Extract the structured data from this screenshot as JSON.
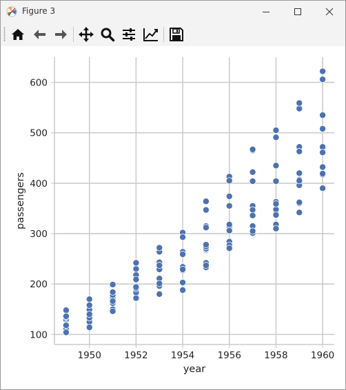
{
  "window": {
    "title": "Figure 3",
    "app_icon": "matplotlib-icon",
    "controls": [
      "minimize-icon",
      "maximize-icon",
      "close-icon"
    ]
  },
  "toolbar": {
    "buttons": [
      {
        "name": "home",
        "icon": "home-icon"
      },
      {
        "name": "back",
        "icon": "back-arrow-icon"
      },
      {
        "name": "forward",
        "icon": "forward-arrow-icon"
      },
      {
        "name": "pan",
        "icon": "move-icon"
      },
      {
        "name": "zoom",
        "icon": "zoom-icon"
      },
      {
        "name": "configure-subplots",
        "icon": "sliders-icon"
      },
      {
        "name": "edit-axis",
        "icon": "line-chart-icon"
      },
      {
        "name": "save",
        "icon": "save-icon"
      }
    ]
  },
  "chart_data": {
    "type": "scatter",
    "xlabel": "year",
    "ylabel": "passengers",
    "xlim": [
      1948.5,
      1960.5
    ],
    "ylim": [
      80,
      650
    ],
    "xticks": [
      1950,
      1952,
      1954,
      1956,
      1958,
      1960
    ],
    "yticks": [
      100,
      200,
      300,
      400,
      500,
      600
    ],
    "grid": true,
    "marker_color": "#4c72b0",
    "marker_edge": "#ffffff",
    "points": [
      [
        1949,
        112
      ],
      [
        1949,
        118
      ],
      [
        1949,
        132
      ],
      [
        1949,
        129
      ],
      [
        1949,
        121
      ],
      [
        1949,
        135
      ],
      [
        1949,
        148
      ],
      [
        1949,
        148
      ],
      [
        1949,
        136
      ],
      [
        1949,
        119
      ],
      [
        1949,
        104
      ],
      [
        1949,
        118
      ],
      [
        1950,
        115
      ],
      [
        1950,
        126
      ],
      [
        1950,
        141
      ],
      [
        1950,
        135
      ],
      [
        1950,
        125
      ],
      [
        1950,
        149
      ],
      [
        1950,
        170
      ],
      [
        1950,
        170
      ],
      [
        1950,
        158
      ],
      [
        1950,
        133
      ],
      [
        1950,
        114
      ],
      [
        1950,
        140
      ],
      [
        1951,
        145
      ],
      [
        1951,
        150
      ],
      [
        1951,
        178
      ],
      [
        1951,
        163
      ],
      [
        1951,
        172
      ],
      [
        1951,
        178
      ],
      [
        1951,
        199
      ],
      [
        1951,
        199
      ],
      [
        1951,
        184
      ],
      [
        1951,
        162
      ],
      [
        1951,
        146
      ],
      [
        1951,
        166
      ],
      [
        1952,
        171
      ],
      [
        1952,
        180
      ],
      [
        1952,
        193
      ],
      [
        1952,
        181
      ],
      [
        1952,
        183
      ],
      [
        1952,
        218
      ],
      [
        1952,
        230
      ],
      [
        1952,
        242
      ],
      [
        1952,
        209
      ],
      [
        1952,
        191
      ],
      [
        1952,
        172
      ],
      [
        1952,
        194
      ],
      [
        1953,
        196
      ],
      [
        1953,
        196
      ],
      [
        1953,
        236
      ],
      [
        1953,
        235
      ],
      [
        1953,
        229
      ],
      [
        1953,
        243
      ],
      [
        1953,
        264
      ],
      [
        1953,
        272
      ],
      [
        1953,
        237
      ],
      [
        1953,
        211
      ],
      [
        1953,
        180
      ],
      [
        1953,
        201
      ],
      [
        1954,
        204
      ],
      [
        1954,
        188
      ],
      [
        1954,
        235
      ],
      [
        1954,
        227
      ],
      [
        1954,
        234
      ],
      [
        1954,
        264
      ],
      [
        1954,
        302
      ],
      [
        1954,
        293
      ],
      [
        1954,
        259
      ],
      [
        1954,
        229
      ],
      [
        1954,
        203
      ],
      [
        1954,
        229
      ],
      [
        1955,
        242
      ],
      [
        1955,
        233
      ],
      [
        1955,
        267
      ],
      [
        1955,
        269
      ],
      [
        1955,
        270
      ],
      [
        1955,
        315
      ],
      [
        1955,
        364
      ],
      [
        1955,
        347
      ],
      [
        1955,
        312
      ],
      [
        1955,
        274
      ],
      [
        1955,
        237
      ],
      [
        1955,
        278
      ],
      [
        1956,
        284
      ],
      [
        1956,
        277
      ],
      [
        1956,
        317
      ],
      [
        1956,
        313
      ],
      [
        1956,
        318
      ],
      [
        1956,
        374
      ],
      [
        1956,
        413
      ],
      [
        1956,
        405
      ],
      [
        1956,
        355
      ],
      [
        1956,
        306
      ],
      [
        1956,
        271
      ],
      [
        1956,
        306
      ],
      [
        1957,
        315
      ],
      [
        1957,
        301
      ],
      [
        1957,
        356
      ],
      [
        1957,
        348
      ],
      [
        1957,
        355
      ],
      [
        1957,
        422
      ],
      [
        1957,
        465
      ],
      [
        1957,
        467
      ],
      [
        1957,
        404
      ],
      [
        1957,
        347
      ],
      [
        1957,
        305
      ],
      [
        1957,
        336
      ],
      [
        1958,
        340
      ],
      [
        1958,
        318
      ],
      [
        1958,
        362
      ],
      [
        1958,
        348
      ],
      [
        1958,
        363
      ],
      [
        1958,
        435
      ],
      [
        1958,
        491
      ],
      [
        1958,
        505
      ],
      [
        1958,
        404
      ],
      [
        1958,
        359
      ],
      [
        1958,
        310
      ],
      [
        1958,
        337
      ],
      [
        1959,
        360
      ],
      [
        1959,
        342
      ],
      [
        1959,
        406
      ],
      [
        1959,
        396
      ],
      [
        1959,
        420
      ],
      [
        1959,
        472
      ],
      [
        1959,
        548
      ],
      [
        1959,
        559
      ],
      [
        1959,
        463
      ],
      [
        1959,
        407
      ],
      [
        1959,
        362
      ],
      [
        1959,
        405
      ],
      [
        1960,
        417
      ],
      [
        1960,
        391
      ],
      [
        1960,
        419
      ],
      [
        1960,
        461
      ],
      [
        1960,
        472
      ],
      [
        1960,
        535
      ],
      [
        1960,
        622
      ],
      [
        1960,
        606
      ],
      [
        1960,
        508
      ],
      [
        1960,
        461
      ],
      [
        1960,
        390
      ],
      [
        1960,
        432
      ]
    ]
  }
}
